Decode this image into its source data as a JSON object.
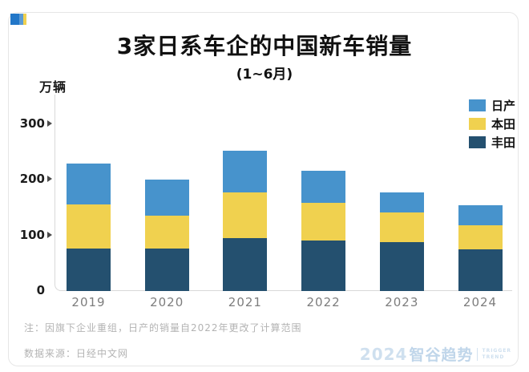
{
  "header": {
    "title": "3家日系车企的中国新车销量",
    "subtitle": "(1~6月)",
    "unit_label": "万辆"
  },
  "chart_data": {
    "type": "bar",
    "stacked": true,
    "title": "3家日系车企的中国新车销量",
    "subtitle": "(1~6月)",
    "ylabel": "万辆",
    "categories": [
      "2019",
      "2020",
      "2021",
      "2022",
      "2023",
      "2024"
    ],
    "series": [
      {
        "name": "丰田",
        "color": "#24506f",
        "values": [
          75,
          75,
          94,
          89,
          86,
          74
        ]
      },
      {
        "name": "本田",
        "color": "#f0d14f",
        "values": [
          79,
          59,
          82,
          68,
          54,
          43
        ]
      },
      {
        "name": "日产",
        "color": "#4793cc",
        "values": [
          74,
          64,
          75,
          57,
          36,
          35
        ]
      }
    ],
    "totals": [
      228,
      198,
      251,
      214,
      176,
      152
    ],
    "yticks": [
      0,
      100,
      200,
      300
    ],
    "ylim": [
      0,
      330
    ],
    "grid": false,
    "legend_position": "top-right",
    "legend_order_top_to_bottom": [
      "日产",
      "本田",
      "丰田"
    ]
  },
  "legend": {
    "items": [
      {
        "label": "日产",
        "color": "#4793cc"
      },
      {
        "label": "本田",
        "color": "#f0d14f"
      },
      {
        "label": "丰田",
        "color": "#24506f"
      }
    ]
  },
  "footer": {
    "note": "注：因旗下企业重组，日产的销量自2022年更改了计算范围",
    "source": "数据来源：日经中文网",
    "watermark": {
      "year": "2024",
      "brand": "智谷趋势",
      "sub_line1": "TRIGGER",
      "sub_line2": "TREND"
    }
  },
  "colors": {
    "nissan": "#4793cc",
    "honda": "#f0d14f",
    "toyota": "#24506f",
    "axis": "#d9d9d9",
    "tick_text": "#1c1c1c",
    "year_text": "#7d7d7d",
    "footer_text": "#b3b3b3",
    "watermark_text": "#c5d9ea"
  }
}
